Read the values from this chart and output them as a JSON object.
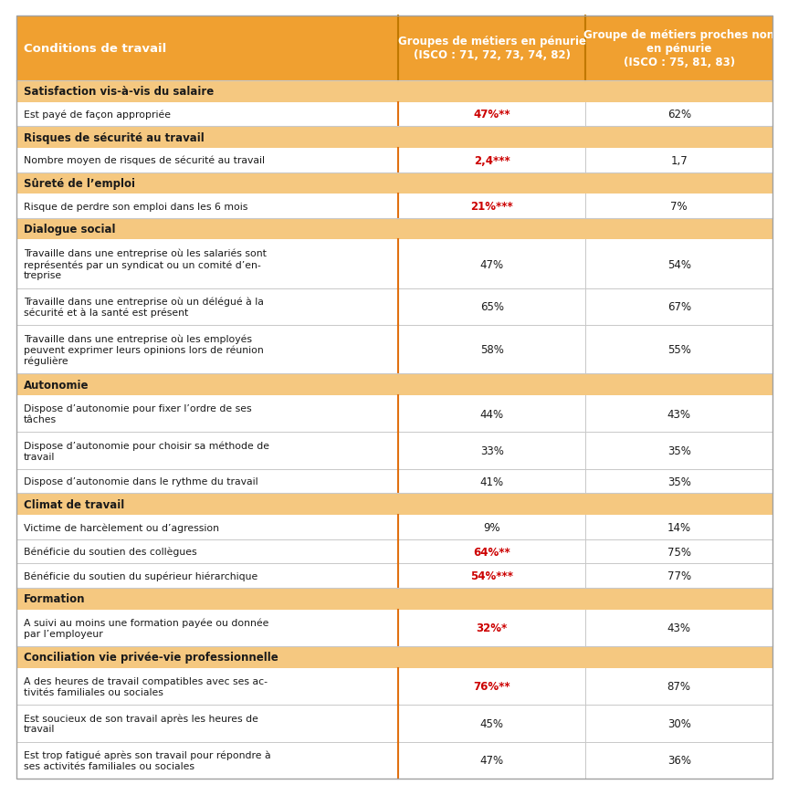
{
  "header": {
    "col0": "Conditions de travail",
    "col1": "Groupes de métiers en pénurie\n(ISCO : 71, 72, 73, 74, 82)",
    "col2": "Groupe de métiers proches non\nen pénurie\n(ISCO : 75, 81, 83)"
  },
  "header_bg": "#F0A030",
  "header_text_color": "#FFFFFF",
  "section_bg": "#F5C880",
  "section_text_color": "#1A1A1A",
  "row_bg": "#FFFFFF",
  "separator_color": "#C8C8C8",
  "orange_divider_color": "#E07010",
  "red_text_color": "#CC0000",
  "black_text_color": "#1A1A1A",
  "sections": [
    {
      "title": "Satisfaction vis-à-vis du salaire",
      "rows": [
        {
          "label": "Est payé de façon appropriée",
          "col1": "47%**",
          "col2": "62%",
          "col1_red": true
        }
      ]
    },
    {
      "title": "Risques de sécurité au travail",
      "rows": [
        {
          "label": "Nombre moyen de risques de sécurité au travail",
          "col1": "2,4***",
          "col2": "1,7",
          "col1_red": true
        }
      ]
    },
    {
      "title": "Sûreté de l’emploi",
      "rows": [
        {
          "label": "Risque de perdre son emploi dans les 6 mois",
          "col1": "21%***",
          "col2": "7%",
          "col1_red": true
        }
      ]
    },
    {
      "title": "Dialogue social",
      "rows": [
        {
          "label": "Travaille dans une entreprise où les salariés sont\nreprésentés par un syndicat ou un comité d’en-\ntreprise",
          "col1": "47%",
          "col2": "54%",
          "col1_red": false
        },
        {
          "label": "Travaille dans une entreprise où un délégué à la\nsécurité et à la santé est présent",
          "col1": "65%",
          "col2": "67%",
          "col1_red": false
        },
        {
          "label": "Travaille dans une entreprise où les employés\npeuvent exprimer leurs opinions lors de réunion\nrégulière",
          "col1": "58%",
          "col2": "55%",
          "col1_red": false
        }
      ]
    },
    {
      "title": "Autonomie",
      "rows": [
        {
          "label": "Dispose d’autonomie pour fixer l’ordre de ses\ntâches",
          "col1": "44%",
          "col2": "43%",
          "col1_red": false
        },
        {
          "label": "Dispose d’autonomie pour choisir sa méthode de\ntravail",
          "col1": "33%",
          "col2": "35%",
          "col1_red": false
        },
        {
          "label": "Dispose d’autonomie dans le rythme du travail",
          "col1": "41%",
          "col2": "35%",
          "col1_red": false
        }
      ]
    },
    {
      "title": "Climat de travail",
      "rows": [
        {
          "label": "Victime de harcèlement ou d’agression",
          "col1": "9%",
          "col2": "14%",
          "col1_red": false
        },
        {
          "label": "Bénéficie du soutien des collègues",
          "col1": "64%**",
          "col2": "75%",
          "col1_red": true
        },
        {
          "label": "Bénéficie du soutien du supérieur hiérarchique",
          "col1": "54%***",
          "col2": "77%",
          "col1_red": true
        }
      ]
    },
    {
      "title": "Formation",
      "rows": [
        {
          "label": "A suivi au moins une formation payée ou donnée\npar l’employeur",
          "col1": "32%*",
          "col2": "43%",
          "col1_red": true
        }
      ]
    },
    {
      "title": "Conciliation vie privée-vie professionnelle",
      "rows": [
        {
          "label": "A des heures de travail compatibles avec ses ac-\ntivités familiales ou sociales",
          "col1": "76%**",
          "col2": "87%",
          "col1_red": true
        },
        {
          "label": "Est soucieux de son travail après les heures de\ntravail",
          "col1": "45%",
          "col2": "30%",
          "col1_red": false
        },
        {
          "label": "Est trop fatigué après son travail pour répondre à\nses activités familiales ou sociales",
          "col1": "47%",
          "col2": "36%",
          "col1_red": false
        }
      ]
    }
  ],
  "figsize": [
    8.44,
    8.52
  ],
  "dpi": 100
}
